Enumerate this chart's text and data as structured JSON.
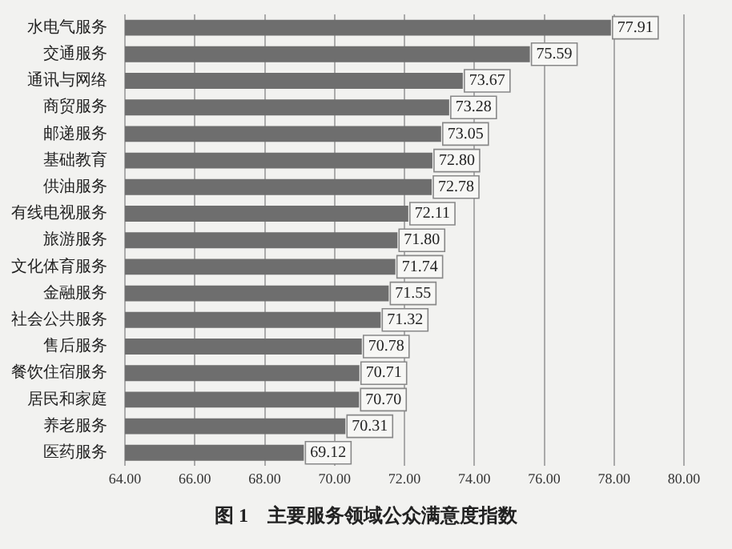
{
  "chart_data": {
    "type": "bar",
    "orientation": "horizontal",
    "title": "图 1　主要服务领域公众满意度指数",
    "categories": [
      "水电气服务",
      "交通服务",
      "通讯与网络",
      "商贸服务",
      "邮递服务",
      "基础教育",
      "供油服务",
      "有线电视服务",
      "旅游服务",
      "文化体育服务",
      "金融服务",
      "社会公共服务",
      "售后服务",
      "餐饮住宿服务",
      "居民和家庭",
      "养老服务",
      "医药服务"
    ],
    "values": [
      77.91,
      75.59,
      73.67,
      73.28,
      73.05,
      72.8,
      72.78,
      72.11,
      71.8,
      71.74,
      71.55,
      71.32,
      70.78,
      70.71,
      70.7,
      70.31,
      69.12
    ],
    "color": "#6e6e6e",
    "xlim": [
      64,
      80
    ],
    "xticks": [
      {
        "value": 64,
        "label": "64.00"
      },
      {
        "value": 66,
        "label": "66.00"
      },
      {
        "value": 68,
        "label": "68.00"
      },
      {
        "value": 70,
        "label": "70.00"
      },
      {
        "value": 72,
        "label": "72.00"
      },
      {
        "value": 74,
        "label": "74.00"
      },
      {
        "value": 76,
        "label": "76.00"
      },
      {
        "value": 78,
        "label": "78.00"
      },
      {
        "value": 80,
        "label": "80.00"
      }
    ],
    "value_labels": [
      "77.91",
      "75.59",
      "73.67",
      "73.28",
      "73.05",
      "72.80",
      "72.78",
      "72.11",
      "71.80",
      "71.74",
      "71.55",
      "71.32",
      "70.78",
      "70.71",
      "70.70",
      "70.31",
      "69.12"
    ],
    "grid": "x",
    "legend": false
  }
}
